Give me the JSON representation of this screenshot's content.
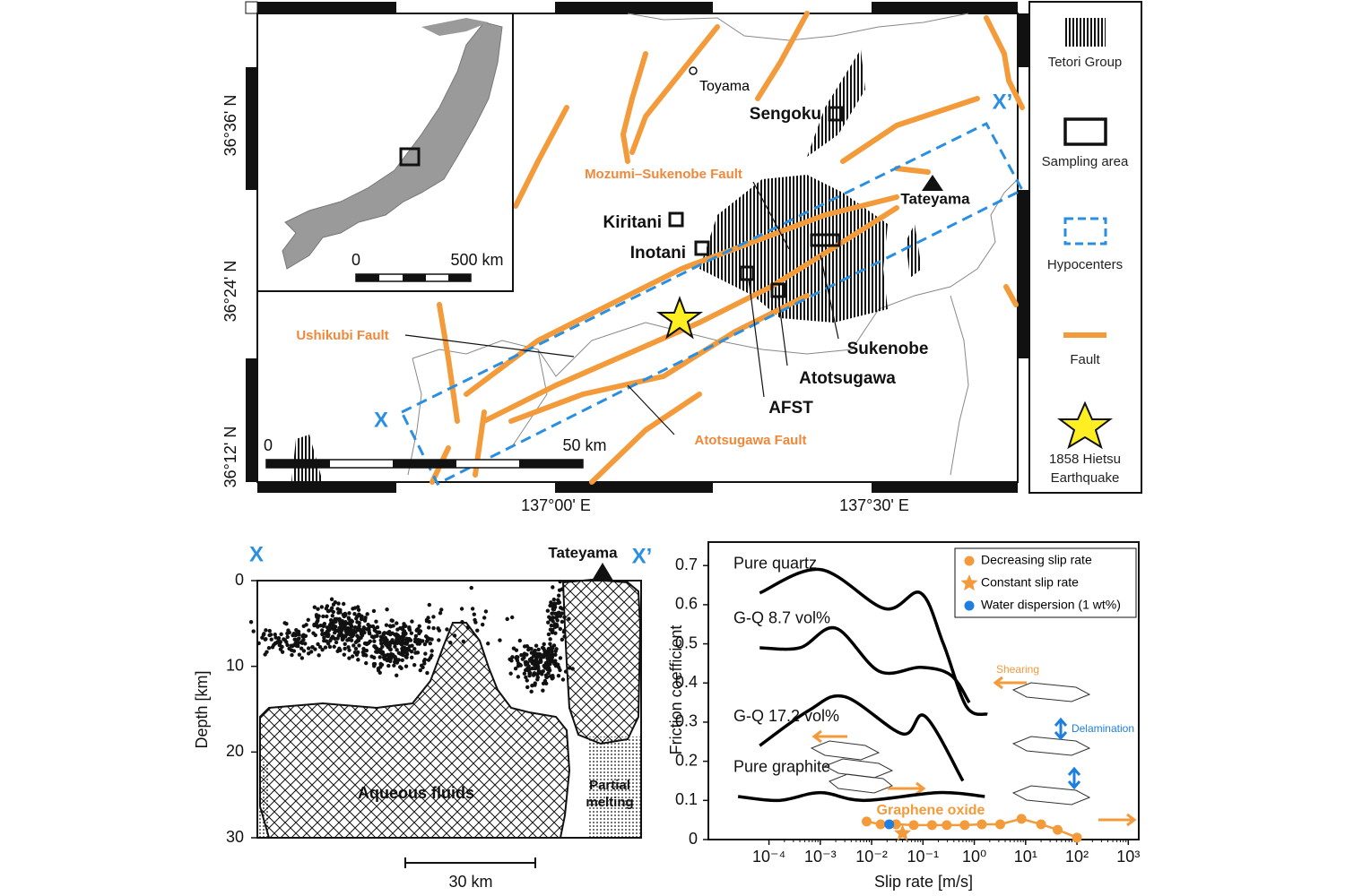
{
  "map": {
    "latitudes": [
      "36°36' N",
      "36°24' N",
      "36°12' N"
    ],
    "longitudes": [
      "137°00' E",
      "137°30' E"
    ],
    "places": [
      "Toyama",
      "Sengoku",
      "Tateyama",
      "Kiritani",
      "Inotani",
      "Sukenobe",
      "Atotsugawa",
      "AFST"
    ],
    "faults": [
      "Mozumi–Sukenobe Fault",
      "Ushikubi Fault",
      "Atotsugawa Fault"
    ],
    "profile_ends": [
      "X",
      "X’"
    ],
    "scale": [
      "0",
      "50 km"
    ],
    "inset_scale": [
      "0",
      "500 km"
    ],
    "legend": [
      "Tetori Group",
      "Sampling area",
      "Hypocenters",
      "Fault",
      "1858 Hietsu",
      "Earthquake"
    ]
  },
  "cross_section": {
    "ends": [
      "X",
      "X’"
    ],
    "peak": "Tateyama",
    "y_label": "Depth [km]",
    "ylim": [
      0,
      30
    ],
    "yticks": [
      0,
      10,
      20,
      30
    ],
    "fluids": "Aqueous fluids",
    "melting": [
      "Partial",
      "melting"
    ],
    "scale": "30 km"
  },
  "chart_data": {
    "type": "line",
    "xscale": "log",
    "grid": false,
    "x_label": "Slip rate [m/s]",
    "y_label": "Friction coefficient",
    "xlim": [
      6.6e-06,
      1600
    ],
    "ylim": [
      0,
      0.76
    ],
    "xticks": [
      {
        "value": 0.0001,
        "label": "10⁻⁴"
      },
      {
        "value": 0.001,
        "label": "10⁻³"
      },
      {
        "value": 0.01,
        "label": "10⁻²"
      },
      {
        "value": 0.1,
        "label": "10⁻¹"
      },
      {
        "value": 1,
        "label": "10⁰"
      },
      {
        "value": 10,
        "label": "10¹"
      },
      {
        "value": 100,
        "label": "10²"
      },
      {
        "value": 1000,
        "label": "10³"
      }
    ],
    "yticks": [
      0,
      0.1,
      0.2,
      0.3,
      0.4,
      0.5,
      0.6,
      0.7
    ],
    "series": [
      {
        "name": "Pure quartz",
        "color": "#000000",
        "x": [
          6.6e-05,
          0.001,
          0.018,
          0.09,
          0.25,
          0.7,
          1.8
        ],
        "values": [
          0.63,
          0.69,
          0.59,
          0.63,
          0.5,
          0.34,
          0.32
        ]
      },
      {
        "name": "G-Q 8.7 vol%",
        "color": "#000000",
        "x": [
          6.6e-05,
          0.0004,
          0.002,
          0.014,
          0.09,
          0.35,
          0.8
        ],
        "values": [
          0.49,
          0.49,
          0.54,
          0.43,
          0.44,
          0.42,
          0.35
        ]
      },
      {
        "name": "G-Q 17.2 vol%",
        "color": "#000000",
        "x": [
          6.6e-05,
          0.0006,
          0.003,
          0.04,
          0.11,
          0.6
        ],
        "values": [
          0.24,
          0.33,
          0.365,
          0.27,
          0.315,
          0.15
        ]
      },
      {
        "name": "Pure graphite",
        "color": "#000000",
        "x": [
          2.5e-05,
          0.00016,
          0.001,
          0.007,
          0.2,
          1.6
        ],
        "values": [
          0.11,
          0.1,
          0.12,
          0.1,
          0.12,
          0.11
        ]
      },
      {
        "name": "Decreasing slip rate",
        "marker": "circle",
        "color": "#f39a3a",
        "x": [
          0.008,
          0.015,
          0.03,
          0.066,
          0.15,
          0.29,
          0.65,
          1.4,
          3.2,
          8.3,
          20,
          42,
          100
        ],
        "values": [
          0.046,
          0.039,
          0.039,
          0.037,
          0.037,
          0.037,
          0.037,
          0.039,
          0.039,
          0.053,
          0.039,
          0.025,
          0.005
        ]
      },
      {
        "name": "Constant slip rate",
        "marker": "star",
        "color": "#f39a3a",
        "x": [
          0.04
        ],
        "values": [
          0.016
        ]
      },
      {
        "name": "Water dispersion (1 wt%)",
        "marker": "circle",
        "color": "#1f7fe0",
        "x": [
          0.022
        ],
        "values": [
          0.039
        ]
      }
    ],
    "annotations": [
      "Graphene oxide",
      "Shearing",
      "Delamination"
    ]
  }
}
